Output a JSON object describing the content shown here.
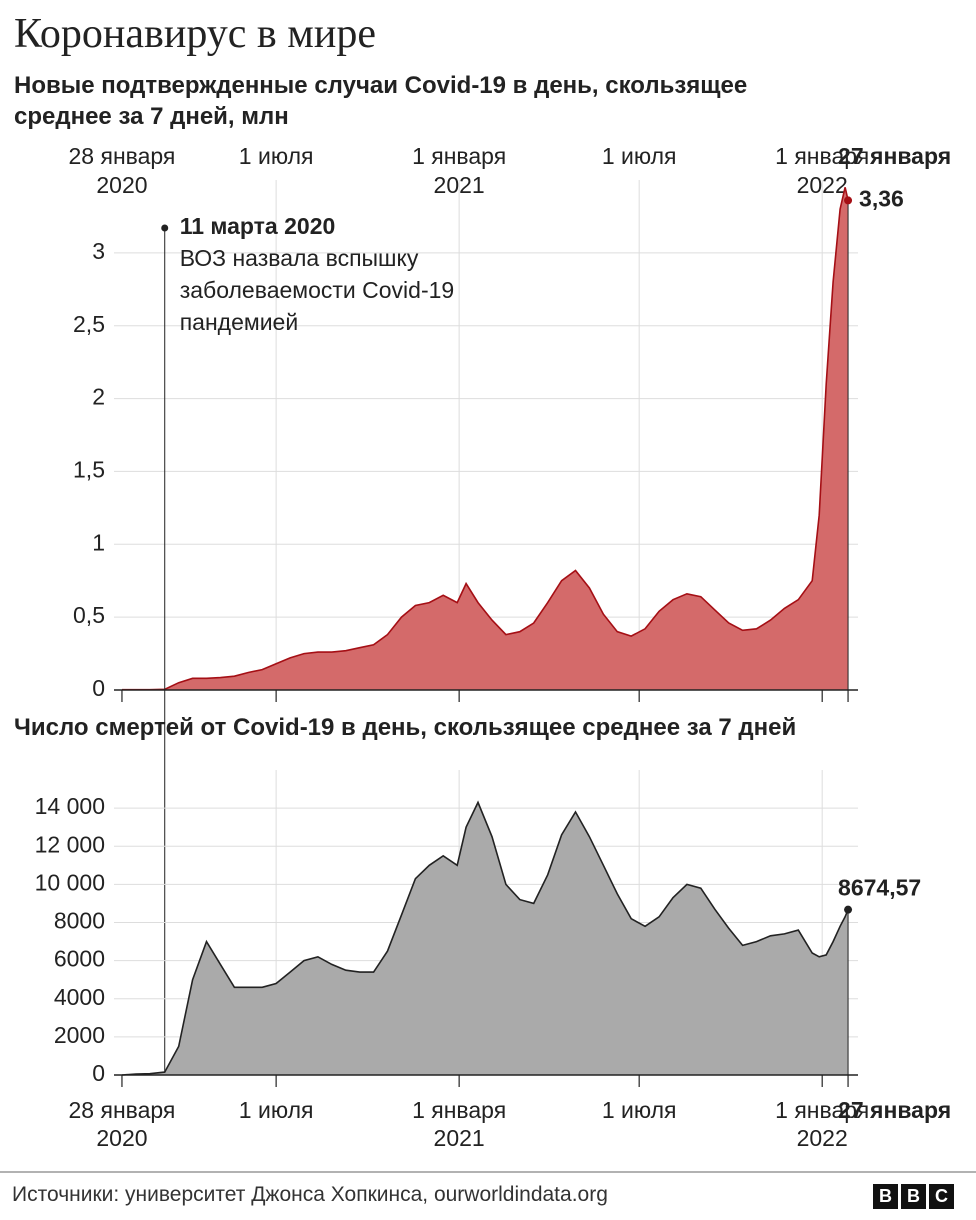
{
  "title": "Коронавирус в мире",
  "source": "Источники: университет Джонса Хопкинса, ourworldindata.org",
  "logo": [
    "B",
    "B",
    "C"
  ],
  "chart_data": [
    {
      "type": "area",
      "title": "Новые подтвержденные случаи Covid-19 в день, скользящее среднее за 7 дней, млн",
      "x": [
        "2020-01-28",
        "2020-02-11",
        "2020-02-25",
        "2020-03-11",
        "2020-03-25",
        "2020-04-08",
        "2020-04-22",
        "2020-05-06",
        "2020-05-20",
        "2020-06-03",
        "2020-06-17",
        "2020-07-01",
        "2020-07-15",
        "2020-07-29",
        "2020-08-12",
        "2020-08-26",
        "2020-09-09",
        "2020-09-23",
        "2020-10-07",
        "2020-10-21",
        "2020-11-04",
        "2020-11-18",
        "2020-12-02",
        "2020-12-16",
        "2020-12-30",
        "2021-01-08",
        "2021-01-20",
        "2021-02-03",
        "2021-02-17",
        "2021-03-03",
        "2021-03-17",
        "2021-03-31",
        "2021-04-14",
        "2021-04-28",
        "2021-05-12",
        "2021-05-26",
        "2021-06-09",
        "2021-06-23",
        "2021-07-07",
        "2021-07-21",
        "2021-08-04",
        "2021-08-18",
        "2021-09-01",
        "2021-09-15",
        "2021-09-29",
        "2021-10-13",
        "2021-10-27",
        "2021-11-10",
        "2021-11-24",
        "2021-12-08",
        "2021-12-22",
        "2021-12-29",
        "2022-01-05",
        "2022-01-12",
        "2022-01-19",
        "2022-01-24",
        "2022-01-27"
      ],
      "values": [
        0.002,
        0.002,
        0.002,
        0.005,
        0.05,
        0.08,
        0.08,
        0.085,
        0.095,
        0.12,
        0.14,
        0.18,
        0.22,
        0.25,
        0.26,
        0.26,
        0.27,
        0.29,
        0.31,
        0.38,
        0.5,
        0.58,
        0.6,
        0.65,
        0.6,
        0.73,
        0.6,
        0.48,
        0.38,
        0.4,
        0.46,
        0.6,
        0.75,
        0.82,
        0.7,
        0.52,
        0.4,
        0.37,
        0.42,
        0.54,
        0.62,
        0.66,
        0.64,
        0.55,
        0.46,
        0.41,
        0.42,
        0.48,
        0.56,
        0.62,
        0.75,
        1.2,
        2.1,
        2.8,
        3.3,
        3.45,
        3.36
      ],
      "value_labels": [
        null,
        null,
        null,
        null,
        null,
        null,
        null,
        null,
        null,
        null,
        null,
        null,
        null,
        null,
        null,
        null,
        null,
        null,
        null,
        null,
        null,
        null,
        null,
        null,
        null,
        null,
        null,
        null,
        null,
        null,
        null,
        null,
        null,
        null,
        null,
        null,
        null,
        null,
        null,
        null,
        null,
        null,
        null,
        null,
        null,
        null,
        null,
        null,
        null,
        null,
        null,
        null,
        null,
        null,
        null,
        null,
        "3,36"
      ],
      "color": "#d46a6a",
      "line_color": "#a50f15",
      "xlim": [
        "2020-01-20",
        "2022-02-06"
      ],
      "xticks": [
        {
          "value": "2020-01-28",
          "label": "28 января",
          "year": "2020"
        },
        {
          "value": "2020-07-01",
          "label": "1 июля"
        },
        {
          "value": "2021-01-01",
          "label": "1 января",
          "year": "2021"
        },
        {
          "value": "2021-07-01",
          "label": "1 июля"
        },
        {
          "value": "2022-01-01",
          "label": "1 января",
          "year": "2022"
        },
        {
          "value": "2022-01-27",
          "label": "27 января"
        }
      ],
      "xtick_side": "top",
      "ylim": [
        0,
        3.5
      ],
      "yticks": [
        0,
        {
          "value": 0.5,
          "label": "0,5"
        },
        1,
        {
          "value": 1.5,
          "label": "1,5"
        },
        2,
        {
          "value": 2.5,
          "label": "2,5"
        },
        3
      ],
      "grid": true,
      "annotation": {
        "x": "2020-03-11",
        "title": "11 марта 2020",
        "text": [
          "ВОЗ назвала вспышку",
          "заболеваемости Covid-19",
          "пандемией"
        ]
      }
    },
    {
      "type": "area",
      "title": "Число смертей от Covid-19 в день, скользящее среднее за 7 дней",
      "x": [
        "2020-01-28",
        "2020-02-11",
        "2020-02-25",
        "2020-03-11",
        "2020-03-25",
        "2020-04-08",
        "2020-04-22",
        "2020-05-06",
        "2020-05-20",
        "2020-06-03",
        "2020-06-17",
        "2020-07-01",
        "2020-07-15",
        "2020-07-29",
        "2020-08-12",
        "2020-08-26",
        "2020-09-09",
        "2020-09-23",
        "2020-10-07",
        "2020-10-21",
        "2020-11-04",
        "2020-11-18",
        "2020-12-02",
        "2020-12-16",
        "2020-12-30",
        "2021-01-08",
        "2021-01-20",
        "2021-02-03",
        "2021-02-17",
        "2021-03-03",
        "2021-03-17",
        "2021-03-31",
        "2021-04-14",
        "2021-04-28",
        "2021-05-12",
        "2021-05-26",
        "2021-06-09",
        "2021-06-23",
        "2021-07-07",
        "2021-07-21",
        "2021-08-04",
        "2021-08-18",
        "2021-09-01",
        "2021-09-15",
        "2021-09-29",
        "2021-10-13",
        "2021-10-27",
        "2021-11-10",
        "2021-11-24",
        "2021-12-08",
        "2021-12-22",
        "2021-12-29",
        "2022-01-05",
        "2022-01-12",
        "2022-01-19",
        "2022-01-24",
        "2022-01-27"
      ],
      "values": [
        0,
        50,
        70,
        150,
        1500,
        5000,
        7000,
        5800,
        4600,
        4600,
        4600,
        4800,
        5400,
        6000,
        6200,
        5800,
        5500,
        5400,
        5400,
        6500,
        8400,
        10300,
        11000,
        11500,
        11000,
        13000,
        14300,
        12500,
        10000,
        9200,
        9000,
        10500,
        12600,
        13800,
        12500,
        11000,
        9500,
        8200,
        7800,
        8300,
        9300,
        10000,
        9800,
        8700,
        7700,
        6800,
        7000,
        7300,
        7400,
        7600,
        6400,
        6200,
        6300,
        7000,
        7800,
        8300,
        8674.57
      ],
      "value_labels": [
        null,
        null,
        null,
        null,
        null,
        null,
        null,
        null,
        null,
        null,
        null,
        null,
        null,
        null,
        null,
        null,
        null,
        null,
        null,
        null,
        null,
        null,
        null,
        null,
        null,
        null,
        null,
        null,
        null,
        null,
        null,
        null,
        null,
        null,
        null,
        null,
        null,
        null,
        null,
        null,
        null,
        null,
        null,
        null,
        null,
        null,
        null,
        null,
        null,
        null,
        null,
        null,
        null,
        null,
        null,
        null,
        "8674,57"
      ],
      "color": "#aaaaaa",
      "line_color": "#222222",
      "xlim": [
        "2020-01-20",
        "2022-02-06"
      ],
      "xticks": [
        {
          "value": "2020-01-28",
          "label": "28 января",
          "year": "2020"
        },
        {
          "value": "2020-07-01",
          "label": "1 июля"
        },
        {
          "value": "2021-01-01",
          "label": "1 января",
          "year": "2021"
        },
        {
          "value": "2021-07-01",
          "label": "1 июля"
        },
        {
          "value": "2022-01-01",
          "label": "1 января",
          "year": "2022"
        },
        {
          "value": "2022-01-27",
          "label": "27 января"
        }
      ],
      "xtick_side": "bottom",
      "ylim": [
        0,
        16000
      ],
      "yticks": [
        0,
        2000,
        4000,
        6000,
        8000,
        {
          "value": 10000,
          "label": "10 000"
        },
        {
          "value": 12000,
          "label": "12 000"
        },
        {
          "value": 14000,
          "label": "14 000"
        }
      ],
      "grid": true
    }
  ]
}
